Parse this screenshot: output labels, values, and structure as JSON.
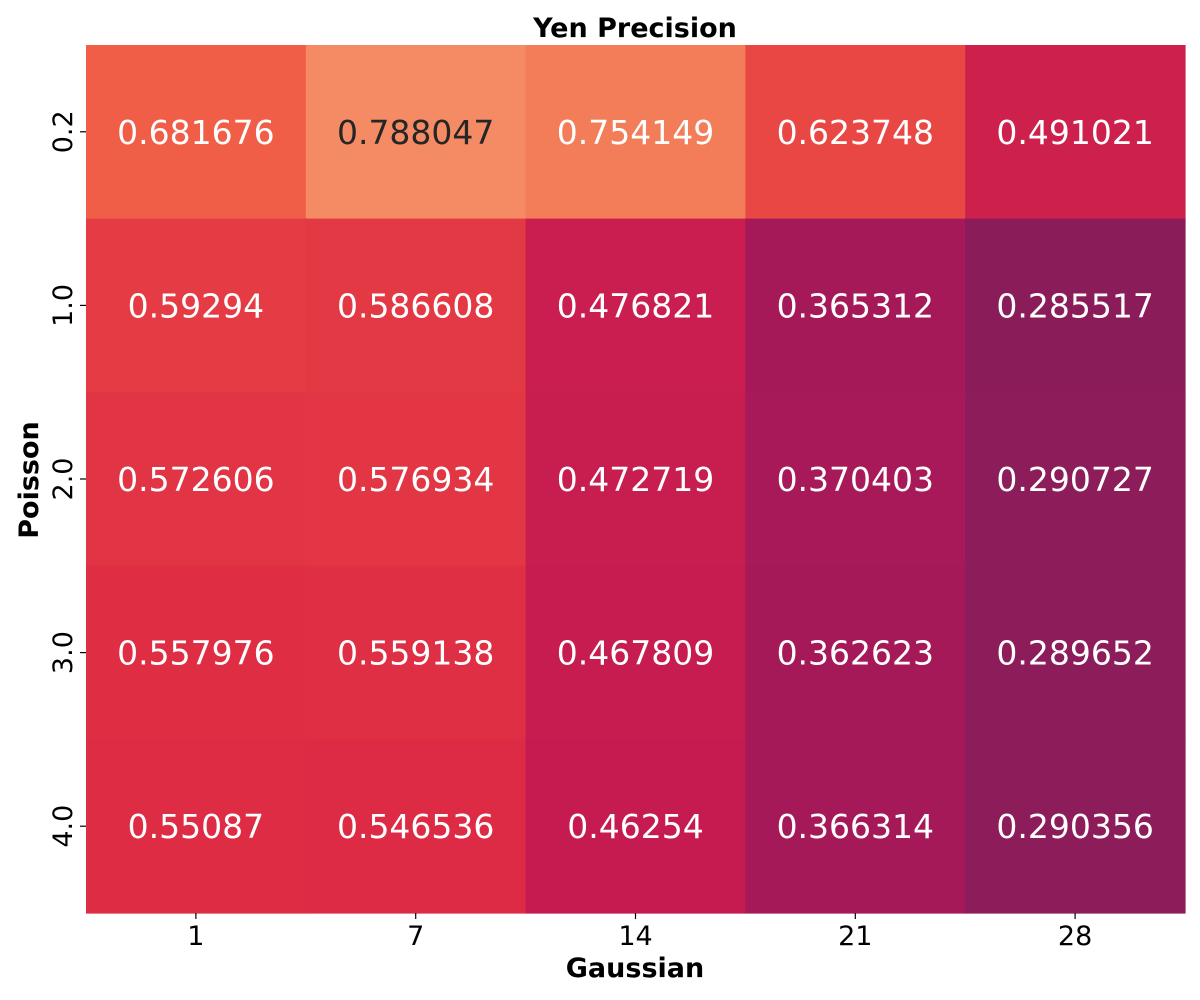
{
  "chart_data": {
    "type": "heatmap",
    "title": "Yen Precision",
    "xlabel": "Gaussian",
    "ylabel": "Poisson",
    "x_categories": [
      "1",
      "7",
      "14",
      "21",
      "28"
    ],
    "y_categories": [
      "0.2",
      "1.0",
      "2.0",
      "3.0",
      "4.0"
    ],
    "values": [
      [
        0.681676,
        0.788047,
        0.754149,
        0.623748,
        0.491021
      ],
      [
        0.59294,
        0.586608,
        0.476821,
        0.365312,
        0.285517
      ],
      [
        0.572606,
        0.576934,
        0.472719,
        0.370403,
        0.290727
      ],
      [
        0.557976,
        0.559138,
        0.467809,
        0.362623,
        0.289652
      ],
      [
        0.55087,
        0.546536,
        0.46254,
        0.366314,
        0.290356
      ]
    ],
    "value_labels": [
      [
        "0.681676",
        "0.788047",
        "0.754149",
        "0.623748",
        "0.491021"
      ],
      [
        "0.59294",
        "0.586608",
        "0.476821",
        "0.365312",
        "0.285517"
      ],
      [
        "0.572606",
        "0.576934",
        "0.472719",
        "0.370403",
        "0.290727"
      ],
      [
        "0.557976",
        "0.559138",
        "0.467809",
        "0.362623",
        "0.289652"
      ],
      [
        "0.55087",
        "0.546536",
        "0.46254",
        "0.366314",
        "0.290356"
      ]
    ],
    "color_range": [
      0.28,
      0.8
    ],
    "colormap": "rocket",
    "colorbar": false,
    "grid": false
  }
}
